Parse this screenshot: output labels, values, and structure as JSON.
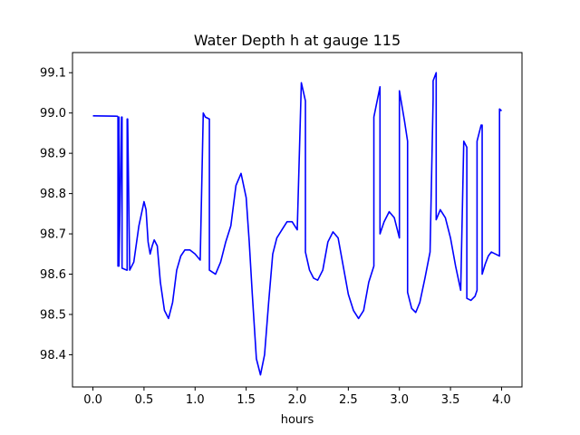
{
  "chart_data": {
    "type": "line",
    "title": "Water Depth h at gauge 115",
    "xlabel": "hours",
    "ylabel": "",
    "xlim": [
      -0.2,
      4.2
    ],
    "ylim": [
      98.32,
      99.15
    ],
    "grid": false,
    "xticks": [
      0.0,
      0.5,
      1.0,
      1.5,
      2.0,
      2.5,
      3.0,
      3.5,
      4.0
    ],
    "xtick_labels": [
      "0.0",
      "0.5",
      "1.0",
      "1.5",
      "2.0",
      "2.5",
      "3.0",
      "3.5",
      "4.0"
    ],
    "yticks": [
      98.4,
      98.5,
      98.6,
      98.7,
      98.8,
      98.9,
      99.0,
      99.1
    ],
    "ytick_labels": [
      "98.4",
      "98.5",
      "98.6",
      "98.7",
      "98.8",
      "98.9",
      "99.0",
      "99.1"
    ],
    "series": [
      {
        "color": "#0000ff",
        "x": [
          0.0,
          0.24,
          0.245,
          0.245,
          0.25,
          0.255,
          0.255,
          0.28,
          0.285,
          0.285,
          0.33,
          0.335,
          0.335,
          0.34,
          0.36,
          0.4,
          0.45,
          0.5,
          0.52,
          0.54,
          0.56,
          0.58,
          0.6,
          0.63,
          0.66,
          0.7,
          0.74,
          0.78,
          0.82,
          0.86,
          0.9,
          0.95,
          1.0,
          1.05,
          1.08,
          1.08,
          1.1,
          1.14,
          1.14,
          1.2,
          1.25,
          1.3,
          1.35,
          1.4,
          1.45,
          1.5,
          1.53,
          1.56,
          1.6,
          1.64,
          1.68,
          1.72,
          1.76,
          1.8,
          1.85,
          1.9,
          1.95,
          2.0,
          2.04,
          2.04,
          2.08,
          2.08,
          2.12,
          2.16,
          2.2,
          2.25,
          2.3,
          2.35,
          2.4,
          2.45,
          2.5,
          2.55,
          2.6,
          2.65,
          2.7,
          2.75,
          2.75,
          2.81,
          2.81,
          2.85,
          2.9,
          2.95,
          3.0,
          3.0,
          3.05,
          3.08,
          3.08,
          3.12,
          3.16,
          3.2,
          3.25,
          3.3,
          3.33,
          3.33,
          3.36,
          3.36,
          3.4,
          3.45,
          3.5,
          3.55,
          3.6,
          3.63,
          3.63,
          3.66,
          3.66,
          3.7,
          3.74,
          3.76,
          3.76,
          3.8,
          3.81,
          3.81,
          3.84,
          3.87,
          3.9,
          3.94,
          3.98,
          3.98,
          4.0
        ],
        "y": [
          98.993,
          98.992,
          98.99,
          98.62,
          98.62,
          98.99,
          98.62,
          98.99,
          98.99,
          98.615,
          98.61,
          98.61,
          98.985,
          98.985,
          98.61,
          98.63,
          98.72,
          98.78,
          98.76,
          98.68,
          98.65,
          98.67,
          98.685,
          98.67,
          98.58,
          98.51,
          98.49,
          98.53,
          98.61,
          98.645,
          98.66,
          98.66,
          98.65,
          98.635,
          99.0,
          99.0,
          98.99,
          98.985,
          98.61,
          98.6,
          98.63,
          98.68,
          98.72,
          98.82,
          98.85,
          98.79,
          98.68,
          98.55,
          98.39,
          98.35,
          98.4,
          98.53,
          98.65,
          98.69,
          98.71,
          98.73,
          98.73,
          98.71,
          99.075,
          99.075,
          99.03,
          98.655,
          98.61,
          98.59,
          98.585,
          98.61,
          98.68,
          98.705,
          98.69,
          98.62,
          98.55,
          98.51,
          98.49,
          98.51,
          98.58,
          98.62,
          98.99,
          99.065,
          98.7,
          98.73,
          98.755,
          98.74,
          98.69,
          99.055,
          98.98,
          98.93,
          98.555,
          98.515,
          98.505,
          98.53,
          98.59,
          98.655,
          99.035,
          99.08,
          99.1,
          98.735,
          98.76,
          98.74,
          98.69,
          98.62,
          98.56,
          98.93,
          98.93,
          98.915,
          98.54,
          98.535,
          98.545,
          98.56,
          98.93,
          98.97,
          98.97,
          98.6,
          98.625,
          98.645,
          98.655,
          98.65,
          98.645,
          99.01,
          99.005
        ]
      }
    ]
  }
}
